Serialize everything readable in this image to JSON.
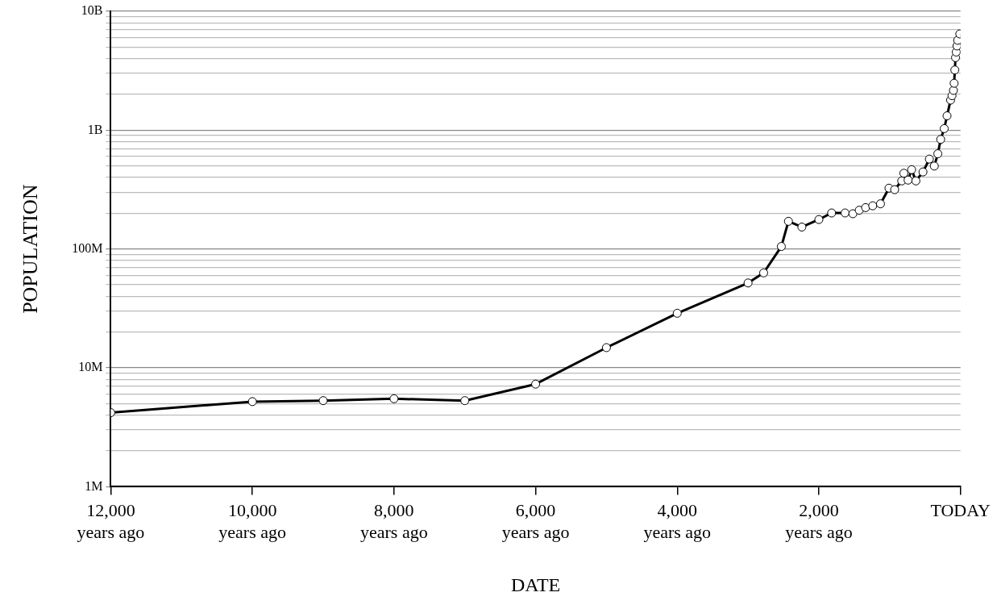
{
  "chart_data": {
    "type": "line",
    "xlabel": "DATE",
    "ylabel": "POPULATION",
    "log": "y",
    "grid": "y",
    "marker": "circle",
    "line_style": "solid",
    "xlim": [
      -12000,
      0
    ],
    "xticks": [
      {
        "value": -12000,
        "label": "12,000\nyears ago"
      },
      {
        "value": -10000,
        "label": "10,000\nyears ago"
      },
      {
        "value": -8000,
        "label": "8,000\nyears ago"
      },
      {
        "value": -6000,
        "label": "6,000\nyears ago"
      },
      {
        "value": -4000,
        "label": "4,000\nyears ago"
      },
      {
        "value": -2000,
        "label": "2,000\nyears ago"
      },
      {
        "value": 0,
        "label": "TODAY"
      }
    ],
    "ylim": [
      1000000,
      10000000000
    ],
    "yticks": [
      {
        "value": 1000000,
        "label": "1M"
      },
      {
        "value": 2000000,
        "label": null
      },
      {
        "value": 3000000,
        "label": null
      },
      {
        "value": 4000000,
        "label": null
      },
      {
        "value": 5000000,
        "label": null
      },
      {
        "value": 6000000,
        "label": null
      },
      {
        "value": 7000000,
        "label": null
      },
      {
        "value": 8000000,
        "label": null
      },
      {
        "value": 9000000,
        "label": null
      },
      {
        "value": 10000000,
        "label": "10M"
      },
      {
        "value": 20000000,
        "label": null
      },
      {
        "value": 30000000,
        "label": null
      },
      {
        "value": 40000000,
        "label": null
      },
      {
        "value": 50000000,
        "label": null
      },
      {
        "value": 60000000,
        "label": null
      },
      {
        "value": 70000000,
        "label": null
      },
      {
        "value": 80000000,
        "label": null
      },
      {
        "value": 90000000,
        "label": null
      },
      {
        "value": 100000000,
        "label": "100M"
      },
      {
        "value": 200000000,
        "label": null
      },
      {
        "value": 300000000,
        "label": null
      },
      {
        "value": 400000000,
        "label": null
      },
      {
        "value": 500000000,
        "label": null
      },
      {
        "value": 600000000,
        "label": null
      },
      {
        "value": 700000000,
        "label": null
      },
      {
        "value": 800000000,
        "label": null
      },
      {
        "value": 900000000,
        "label": null
      },
      {
        "value": 1000000000,
        "label": "1B"
      },
      {
        "value": 2000000000,
        "label": null
      },
      {
        "value": 3000000000,
        "label": null
      },
      {
        "value": 4000000000,
        "label": null
      },
      {
        "value": 5000000000,
        "label": null
      },
      {
        "value": 6000000000,
        "label": null
      },
      {
        "value": 7000000000,
        "label": null
      },
      {
        "value": 8000000000,
        "label": null
      },
      {
        "value": 9000000000,
        "label": null
      },
      {
        "value": 10000000000,
        "label": "10B"
      }
    ],
    "series": [
      {
        "color": "#000000",
        "x": [
          -12000,
          -10000,
          -9000,
          -8000,
          -7000,
          -6000,
          -5000,
          -4000,
          -3000,
          -2780,
          -2530,
          -2430,
          -2240,
          -2000,
          -1820,
          -1630,
          -1520,
          -1430,
          -1340,
          -1240,
          -1130,
          -1010,
          -930,
          -830,
          -800,
          -740,
          -690,
          -630,
          -530,
          -440,
          -370,
          -320,
          -280,
          -230,
          -190,
          -140,
          -120,
          -100,
          -90,
          -80,
          -70,
          -60,
          -50,
          -40,
          -10
        ],
        "values": [
          4200000,
          5200000,
          5300000,
          5500000,
          5300000,
          7300000,
          14800000,
          28800000,
          51800000,
          63000000,
          105000000,
          171000000,
          153000000,
          177000000,
          201000000,
          201000000,
          198000000,
          212000000,
          223000000,
          231000000,
          240000000,
          325000000,
          316000000,
          374000000,
          434000000,
          380000000,
          465000000,
          374000000,
          445000000,
          571000000,
          499000000,
          633000000,
          836000000,
          1030000000,
          1320000000,
          1790000000,
          1950000000,
          2160000000,
          2480000000,
          3210000000,
          4080000000,
          4540000000,
          5110000000,
          5700000000,
          6450000000
        ]
      }
    ]
  }
}
